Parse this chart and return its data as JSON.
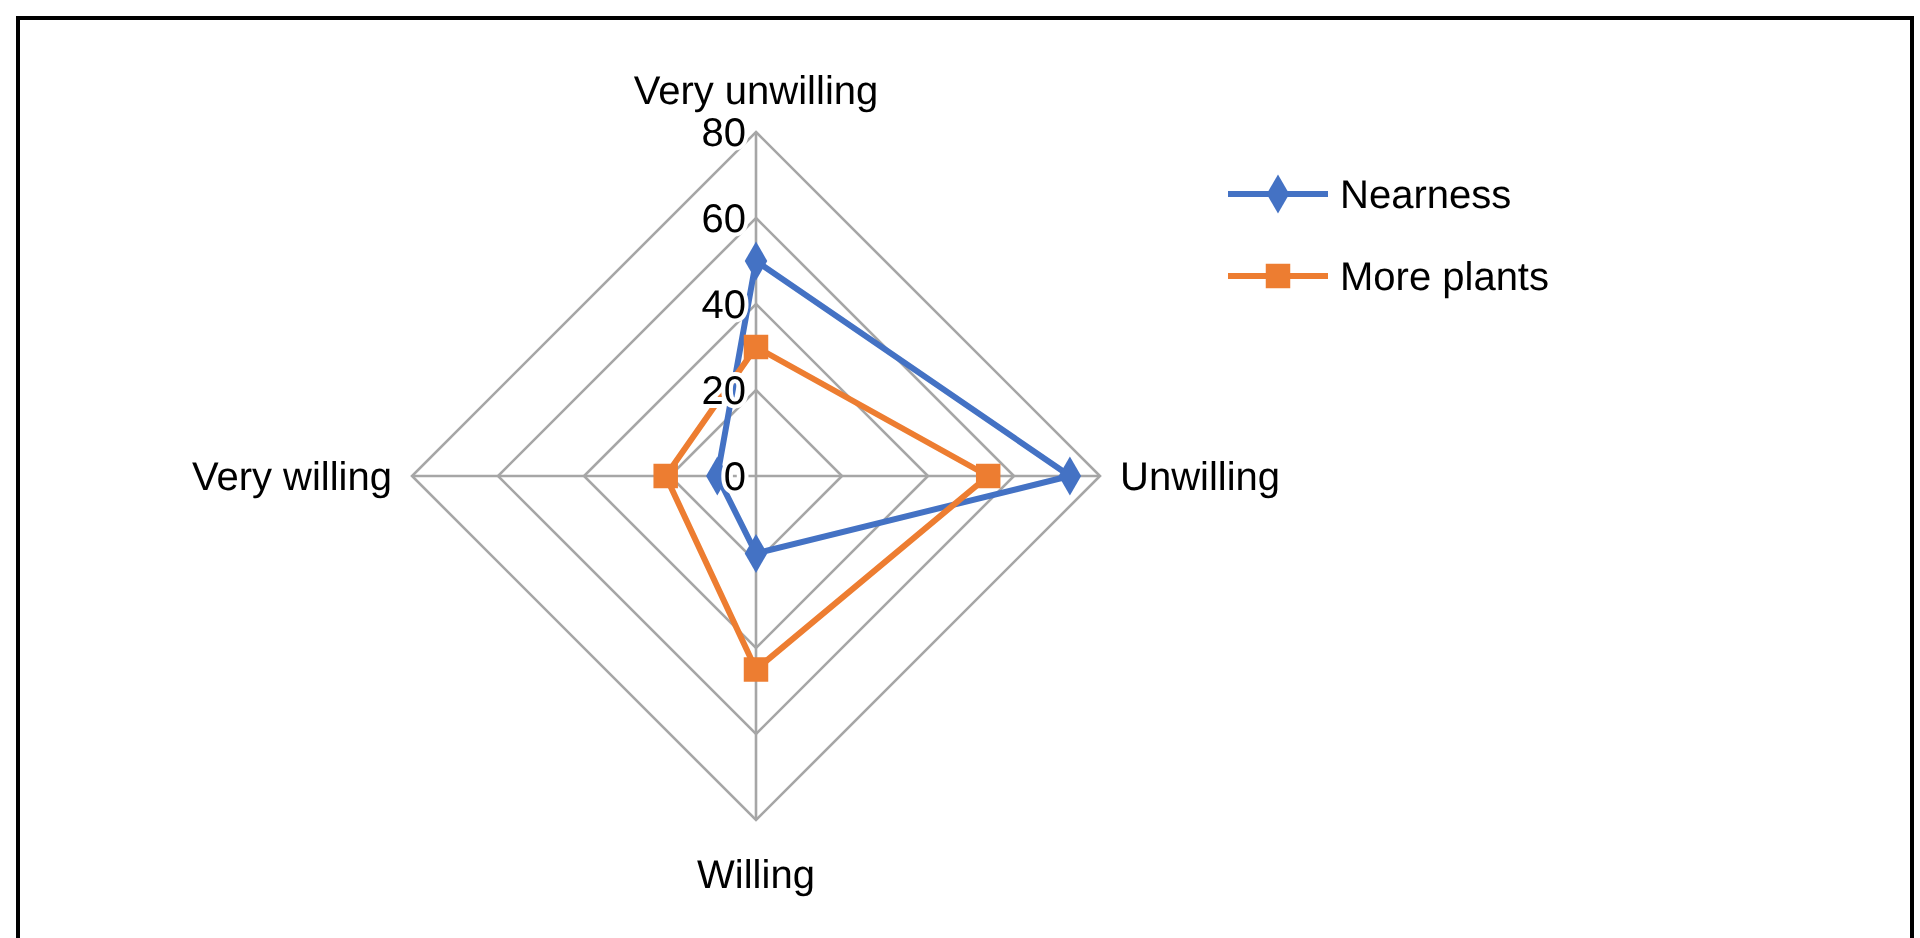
{
  "chart_data": {
    "type": "radar",
    "categories": [
      "Very unwilling",
      "Unwilling",
      "Willing",
      "Very willing"
    ],
    "series": [
      {
        "name": "Nearness",
        "color": "#4472c4",
        "values": [
          50,
          73,
          18,
          9
        ],
        "marker": "diamond"
      },
      {
        "name": "More plants",
        "color": "#ed7d31",
        "values": [
          30,
          54,
          45,
          21
        ],
        "marker": "square"
      }
    ],
    "ylim": [
      0,
      80
    ],
    "yticks": [
      0,
      20,
      40,
      60,
      80
    ],
    "grid": true,
    "legend": "top right",
    "line_style": "solid"
  }
}
